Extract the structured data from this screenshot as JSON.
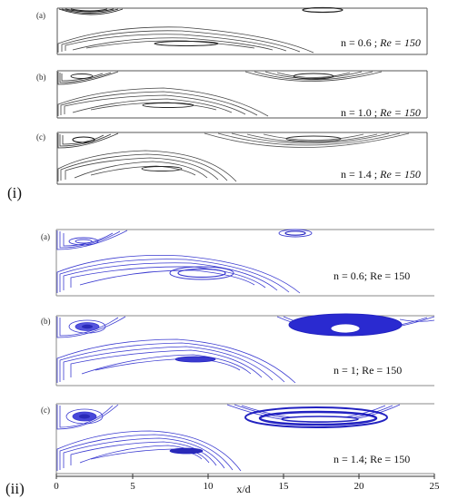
{
  "part_i": {
    "label": "(i)",
    "panels": [
      {
        "sub": "(a)",
        "n_eq": "n = 0.6 ; ",
        "re_eq": "Re = 150"
      },
      {
        "sub": "(b)",
        "n_eq": "n = 1.0 ; ",
        "re_eq": "Re = 150"
      },
      {
        "sub": "(c)",
        "n_eq": "n = 1.4 ; ",
        "re_eq": "Re = 150"
      }
    ]
  },
  "part_ii": {
    "label": "(ii)",
    "panels": [
      {
        "sub": "(a)",
        "caption": "n = 0.6; Re = 150"
      },
      {
        "sub": "(b)",
        "caption": "n = 1; Re = 150"
      },
      {
        "sub": "(c)",
        "caption": "n = 1.4; Re = 150"
      }
    ]
  },
  "x_axis": {
    "label": "x/d",
    "ticks": [
      "0",
      "5",
      "10",
      "15",
      "20",
      "25"
    ]
  },
  "colors": {
    "part_i_lines": "#2a2a2a",
    "part_ii_lines": "#3a3ad0"
  }
}
